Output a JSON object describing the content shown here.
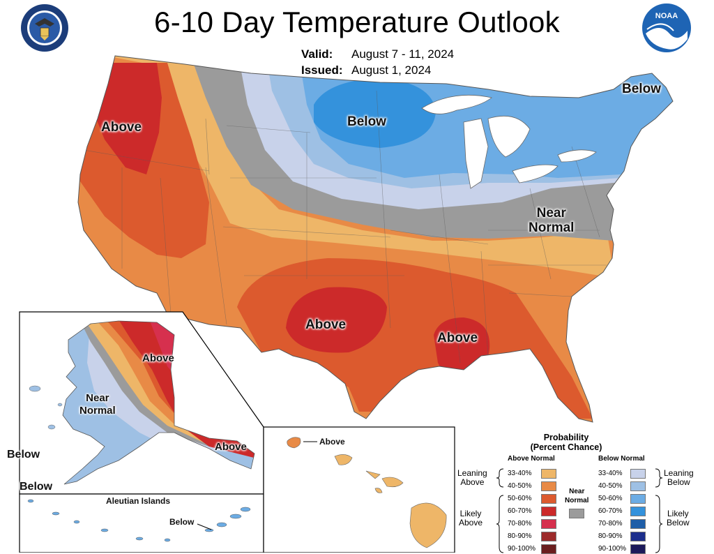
{
  "header": {
    "title": "6-10 Day Temperature Outlook",
    "valid_label": "Valid:",
    "valid_dates": "August 7 - 11, 2024",
    "issued_label": "Issued:",
    "issued_date": "August 1, 2024"
  },
  "logos": {
    "left": "department-of-commerce-seal",
    "right": "noaa-logo",
    "noaa_text": "NOAA"
  },
  "regions": {
    "conus_west": "Above",
    "conus_north": "Below",
    "conus_northeast": "Below",
    "conus_east": "Near\nNormal",
    "conus_texas": "Above",
    "conus_southeast": "Above",
    "alaska_north": "Above",
    "alaska_west": "Near\nNormal",
    "alaska_southeast": "Above",
    "alaska_bering": "Below",
    "alaska_sw": "Below",
    "aleutian_title": "Aleutian Islands",
    "aleutian_label": "Below",
    "hawaii_label": "Above"
  },
  "legend": {
    "title": "Probability\n(Percent Chance)",
    "above_head": "Above Normal",
    "below_head": "Below Normal",
    "near_normal": "Near\nNormal",
    "leaning_above": "Leaning\nAbove",
    "likely_above": "Likely\nAbove",
    "leaning_below": "Leaning\nBelow",
    "likely_below": "Likely\nBelow",
    "above_bins": [
      {
        "range": "33-40%",
        "color": "#EEB668"
      },
      {
        "range": "40-50%",
        "color": "#E88A46"
      },
      {
        "range": "50-60%",
        "color": "#DC5A2E"
      },
      {
        "range": "60-70%",
        "color": "#CC2A2A"
      },
      {
        "range": "70-80%",
        "color": "#D6304E"
      },
      {
        "range": "80-90%",
        "color": "#9C2A2A"
      },
      {
        "range": "90-100%",
        "color": "#6A1E1E"
      }
    ],
    "below_bins": [
      {
        "range": "33-40%",
        "color": "#C8D2EA"
      },
      {
        "range": "40-50%",
        "color": "#9EC0E4"
      },
      {
        "range": "50-60%",
        "color": "#6CACE4"
      },
      {
        "range": "60-70%",
        "color": "#3492DC"
      },
      {
        "range": "70-80%",
        "color": "#1E5EA8"
      },
      {
        "range": "80-90%",
        "color": "#1C2E8C"
      },
      {
        "range": "90-100%",
        "color": "#1C1A5A"
      }
    ],
    "near_normal_color": "#9B9B9B"
  }
}
